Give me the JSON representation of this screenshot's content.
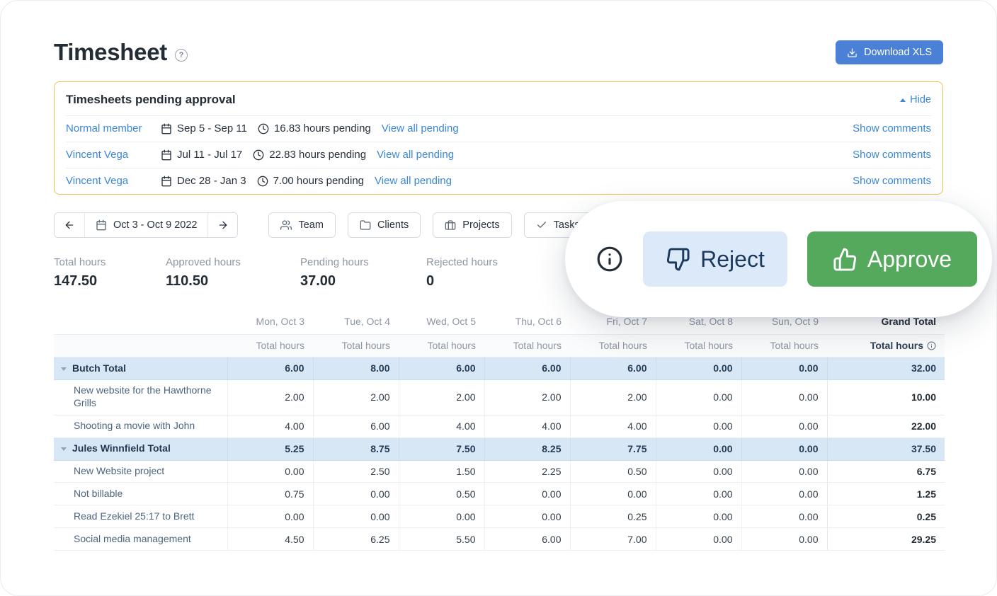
{
  "page": {
    "title": "Timesheet",
    "help_icon": "?"
  },
  "header": {
    "download_button": "Download XLS"
  },
  "pending_panel": {
    "title": "Timesheets pending approval",
    "hide_label": "Hide",
    "rows": [
      {
        "name": "Normal member",
        "dates": "Sep 5 - Sep 11",
        "hours": "16.83 hours pending",
        "view_label": "View all pending",
        "comments_label": "Show comments"
      },
      {
        "name": "Vincent Vega",
        "dates": "Jul 11 - Jul 17",
        "hours": "22.83 hours pending",
        "view_label": "View all pending",
        "comments_label": "Show comments"
      },
      {
        "name": "Vincent Vega",
        "dates": "Dec 28 - Jan 3",
        "hours": "7.00 hours pending",
        "view_label": "View all pending",
        "comments_label": "Show comments"
      }
    ]
  },
  "toolbar": {
    "date_range": "Oct 3 - Oct 9 2022",
    "buttons": [
      "Team",
      "Clients",
      "Projects",
      "Tasks"
    ]
  },
  "overlay": {
    "reject_label": "Reject",
    "approve_label": "Approve"
  },
  "stats": [
    {
      "label": "Total hours",
      "value": "147.50"
    },
    {
      "label": "Approved hours",
      "value": "110.50"
    },
    {
      "label": "Pending hours",
      "value": "37.00"
    },
    {
      "label": "Rejected hours",
      "value": "0"
    }
  ],
  "table": {
    "day_headers": [
      "Mon, Oct 3",
      "Tue, Oct 4",
      "Wed, Oct 5",
      "Thu, Oct 6",
      "Fri, Oct 7",
      "Sat, Oct 8",
      "Sun, Oct 9"
    ],
    "grand_total_header": "Grand Total",
    "subheader": "Total hours",
    "grand_subheader": "Total hours",
    "rows": [
      {
        "type": "group",
        "label": "Butch Total",
        "values": [
          "6.00",
          "8.00",
          "6.00",
          "6.00",
          "6.00",
          "0.00",
          "0.00"
        ],
        "total": "32.00"
      },
      {
        "type": "item",
        "label": "New website for the Hawthorne Grills",
        "values": [
          "2.00",
          "2.00",
          "2.00",
          "2.00",
          "2.00",
          "0.00",
          "0.00"
        ],
        "total": "10.00"
      },
      {
        "type": "item",
        "label": "Shooting a movie with John",
        "values": [
          "4.00",
          "6.00",
          "4.00",
          "4.00",
          "4.00",
          "0.00",
          "0.00"
        ],
        "total": "22.00"
      },
      {
        "type": "group",
        "label": "Jules Winnfield Total",
        "values": [
          "5.25",
          "8.75",
          "7.50",
          "8.25",
          "7.75",
          "0.00",
          "0.00"
        ],
        "total": "37.50"
      },
      {
        "type": "item",
        "label": "New Website project",
        "values": [
          "0.00",
          "2.50",
          "1.50",
          "2.25",
          "0.50",
          "0.00",
          "0.00"
        ],
        "total": "6.75"
      },
      {
        "type": "item",
        "label": "Not billable",
        "values": [
          "0.75",
          "0.00",
          "0.50",
          "0.00",
          "0.00",
          "0.00",
          "0.00"
        ],
        "total": "1.25"
      },
      {
        "type": "item",
        "label": "Read Ezekiel 25:17 to Brett",
        "values": [
          "0.00",
          "0.00",
          "0.00",
          "0.00",
          "0.25",
          "0.00",
          "0.00"
        ],
        "total": "0.25"
      },
      {
        "type": "item",
        "label": "Social media management",
        "values": [
          "4.50",
          "6.25",
          "5.50",
          "6.00",
          "7.00",
          "0.00",
          "0.00"
        ],
        "total": "29.25"
      }
    ]
  },
  "colors": {
    "accent_blue": "#3a87d8",
    "primary_button_blue": "#4a80d6",
    "panel_border_orange": "#f3bd55",
    "approve_green": "#55a95c",
    "reject_light_blue": "#dbe9f8",
    "reject_text_navy": "#1c3a5e",
    "highlight_row_blue": "#d8e7f6"
  }
}
